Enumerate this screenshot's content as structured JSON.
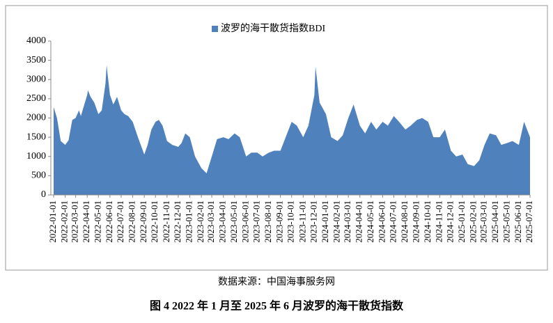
{
  "chart_data": {
    "type": "area",
    "title": "图 4 2022 年 1 月至 2025 年 6 月波罗的海干散货指数",
    "source": "数据来源：中国海事服务网",
    "legend": "top",
    "series": [
      {
        "name": "波罗的海干散货指数BDI",
        "color": "#4f81bd",
        "x": [
          "2022-01-01",
          "2022-01-10",
          "2022-01-20",
          "2022-02-01",
          "2022-02-10",
          "2022-02-20",
          "2022-03-01",
          "2022-03-10",
          "2022-03-15",
          "2022-04-01",
          "2022-04-03",
          "2022-04-10",
          "2022-04-20",
          "2022-05-01",
          "2022-05-10",
          "2022-05-20",
          "2022-05-23",
          "2022-06-01",
          "2022-06-10",
          "2022-06-20",
          "2022-07-01",
          "2022-07-10",
          "2022-07-20",
          "2022-08-01",
          "2022-08-15",
          "2022-09-01",
          "2022-09-10",
          "2022-09-20",
          "2022-10-01",
          "2022-10-10",
          "2022-10-20",
          "2022-11-01",
          "2022-11-15",
          "2022-12-01",
          "2022-12-10",
          "2022-12-20",
          "2023-01-01",
          "2023-01-15",
          "2023-02-01",
          "2023-02-15",
          "2023-03-01",
          "2023-03-15",
          "2023-04-01",
          "2023-04-15",
          "2023-05-01",
          "2023-05-15",
          "2023-06-01",
          "2023-06-15",
          "2023-07-01",
          "2023-07-15",
          "2023-08-01",
          "2023-08-15",
          "2023-09-01",
          "2023-09-15",
          "2023-10-01",
          "2023-10-15",
          "2023-11-01",
          "2023-11-15",
          "2023-12-01",
          "2023-12-04",
          "2023-12-15",
          "2024-01-01",
          "2024-01-15",
          "2024-02-01",
          "2024-02-15",
          "2024-03-01",
          "2024-03-15",
          "2024-04-01",
          "2024-04-15",
          "2024-05-01",
          "2024-05-15",
          "2024-06-01",
          "2024-06-15",
          "2024-07-01",
          "2024-07-15",
          "2024-08-01",
          "2024-08-15",
          "2024-09-01",
          "2024-09-15",
          "2024-10-01",
          "2024-10-15",
          "2024-11-01",
          "2024-11-15",
          "2024-12-01",
          "2024-12-15",
          "2025-01-01",
          "2025-01-15",
          "2025-02-01",
          "2025-02-15",
          "2025-03-01",
          "2025-03-15",
          "2025-04-01",
          "2025-04-15",
          "2025-05-01",
          "2025-05-15",
          "2025-06-01",
          "2025-06-15",
          "2025-07-01"
        ],
        "values": [
          2285,
          2000,
          1400,
          1300,
          1420,
          1950,
          2000,
          2200,
          2050,
          2600,
          2720,
          2550,
          2400,
          2100,
          2200,
          2900,
          3370,
          2600,
          2350,
          2550,
          2200,
          2100,
          2050,
          1900,
          1500,
          1050,
          1300,
          1700,
          1900,
          1950,
          1800,
          1400,
          1300,
          1250,
          1350,
          1600,
          1500,
          1000,
          700,
          560,
          1000,
          1450,
          1500,
          1450,
          1600,
          1500,
          1000,
          1100,
          1100,
          1000,
          1100,
          1150,
          1150,
          1500,
          1900,
          1800,
          1500,
          1800,
          2600,
          3340,
          2400,
          2100,
          1500,
          1400,
          1550,
          2000,
          2350,
          1800,
          1600,
          1900,
          1700,
          1900,
          1800,
          2050,
          1900,
          1700,
          1800,
          1950,
          2000,
          1900,
          1500,
          1500,
          1700,
          1150,
          1000,
          1050,
          800,
          750,
          900,
          1300,
          1600,
          1550,
          1300,
          1350,
          1400,
          1300,
          1900,
          1500
        ]
      }
    ],
    "xlim": [
      "2022-01-01",
      "2025-07-01"
    ],
    "xticks": [
      "2022-01-01",
      "2022-02-01",
      "2022-03-01",
      "2022-04-01",
      "2022-05-01",
      "2022-06-01",
      "2022-07-01",
      "2022-08-01",
      "2022-09-01",
      "2022-10-01",
      "2022-11-01",
      "2022-12-01",
      "2023-01-01",
      "2023-02-01",
      "2023-03-01",
      "2023-04-01",
      "2023-05-01",
      "2023-06-01",
      "2023-07-01",
      "2023-08-01",
      "2023-09-01",
      "2023-10-01",
      "2023-11-01",
      "2023-12-01",
      "2024-01-01",
      "2024-02-01",
      "2024-03-01",
      "2024-04-01",
      "2024-05-01",
      "2024-06-01",
      "2024-07-01",
      "2024-08-01",
      "2024-09-01",
      "2024-10-01",
      "2024-11-01",
      "2024-12-01",
      "2025-01-01",
      "2025-02-01",
      "2025-03-01",
      "2025-04-01",
      "2025-05-01",
      "2025-06-01",
      "2025-07-01"
    ],
    "ylim": [
      0,
      4000
    ],
    "yticks": [
      0,
      500,
      1000,
      1500,
      2000,
      2500,
      3000,
      3500,
      4000
    ]
  }
}
